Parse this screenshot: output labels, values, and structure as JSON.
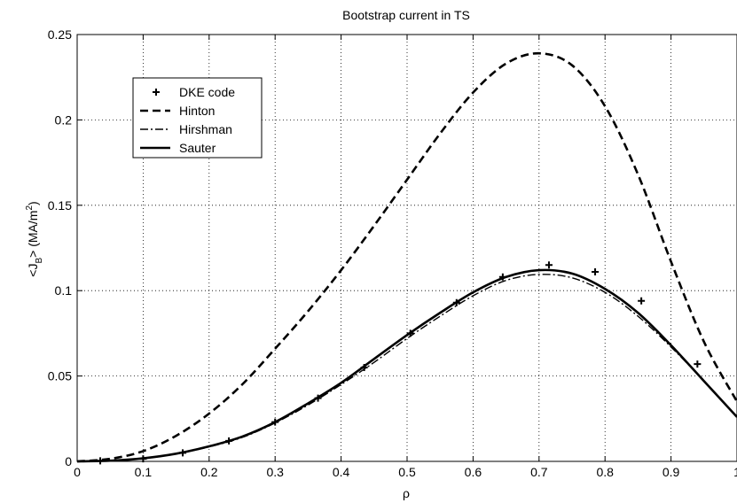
{
  "chart_data": {
    "type": "line",
    "title": "Bootstrap current in TS",
    "xlabel": "ρ",
    "ylabel_parts": {
      "main": "<J",
      "sub": "B",
      "mid": "> (MA/m",
      "sup": "2",
      "end": ")"
    },
    "xlim": [
      0,
      1
    ],
    "ylim": [
      0,
      0.25
    ],
    "xticks": [
      0,
      0.1,
      0.2,
      0.3,
      0.4,
      0.5,
      0.6,
      0.7,
      0.8,
      0.9,
      1
    ],
    "xtick_labels": [
      "0",
      "0.1",
      "0.2",
      "0.3",
      "0.4",
      "0.5",
      "0.6",
      "0.7",
      "0.8",
      "0.9",
      "1"
    ],
    "yticks": [
      0,
      0.05,
      0.1,
      0.15,
      0.2,
      0.25
    ],
    "ytick_labels": [
      "0",
      "0.05",
      "0.1",
      "0.15",
      "0.2",
      "0.25"
    ],
    "grid": true,
    "legend_position": "top-left",
    "series": [
      {
        "name": "DKE code",
        "style": "plus-markers",
        "x": [
          0.035,
          0.1,
          0.16,
          0.23,
          0.3,
          0.365,
          0.435,
          0.505,
          0.575,
          0.645,
          0.715,
          0.785,
          0.855,
          0.94
        ],
        "y": [
          0.0003,
          0.0015,
          0.005,
          0.012,
          0.023,
          0.037,
          0.055,
          0.075,
          0.093,
          0.108,
          0.115,
          0.111,
          0.094,
          0.057
        ]
      },
      {
        "name": "Hinton",
        "style": "dashed",
        "x": [
          0,
          0.05,
          0.1,
          0.15,
          0.2,
          0.25,
          0.3,
          0.35,
          0.4,
          0.45,
          0.5,
          0.55,
          0.6,
          0.65,
          0.7,
          0.75,
          0.8,
          0.85,
          0.9,
          0.95,
          1.0
        ],
        "y": [
          0,
          0.0015,
          0.006,
          0.015,
          0.028,
          0.045,
          0.066,
          0.088,
          0.112,
          0.138,
          0.165,
          0.192,
          0.216,
          0.233,
          0.239,
          0.232,
          0.208,
          0.168,
          0.117,
          0.07,
          0.035
        ]
      },
      {
        "name": "Hirshman",
        "style": "dash-dot",
        "x": [
          0,
          0.05,
          0.1,
          0.15,
          0.2,
          0.25,
          0.3,
          0.35,
          0.4,
          0.45,
          0.5,
          0.55,
          0.6,
          0.65,
          0.7,
          0.75,
          0.8,
          0.85,
          0.9,
          0.95,
          1.0
        ],
        "y": [
          0,
          0.0004,
          0.0018,
          0.0045,
          0.0085,
          0.014,
          0.0225,
          0.033,
          0.045,
          0.058,
          0.072,
          0.085,
          0.097,
          0.106,
          0.1095,
          0.1075,
          0.099,
          0.085,
          0.067,
          0.047,
          0.026
        ]
      },
      {
        "name": "Sauter",
        "style": "solid",
        "x": [
          0,
          0.05,
          0.1,
          0.15,
          0.2,
          0.25,
          0.3,
          0.35,
          0.4,
          0.45,
          0.5,
          0.55,
          0.6,
          0.65,
          0.7,
          0.75,
          0.8,
          0.85,
          0.9,
          0.95,
          1.0
        ],
        "y": [
          0,
          0.0004,
          0.0018,
          0.0045,
          0.0088,
          0.0145,
          0.023,
          0.034,
          0.046,
          0.06,
          0.074,
          0.087,
          0.099,
          0.108,
          0.112,
          0.11,
          0.101,
          0.087,
          0.068,
          0.047,
          0.026
        ]
      }
    ]
  }
}
